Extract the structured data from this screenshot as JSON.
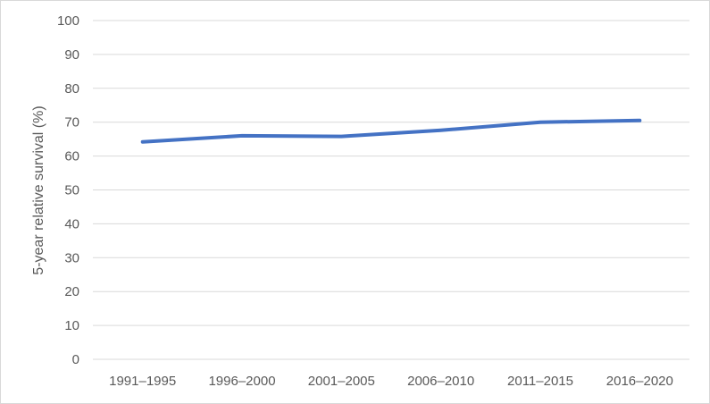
{
  "chart_data": {
    "type": "line",
    "title": "",
    "xlabel": "",
    "ylabel": "5-year relative survival (%)",
    "categories": [
      "1991–1995",
      "1996–2000",
      "2001–2005",
      "2006–2010",
      "2011–2015",
      "2016–2020"
    ],
    "series": [
      {
        "values": [
          64.2,
          66.0,
          65.8,
          67.6,
          70.0,
          70.5
        ],
        "color": "#4472c4"
      }
    ],
    "ylim": [
      0,
      100
    ],
    "yticks": [
      "0",
      "10",
      "20",
      "30",
      "40",
      "50",
      "60",
      "70",
      "80",
      "90",
      "100"
    ],
    "grid": true,
    "legend": "none"
  }
}
